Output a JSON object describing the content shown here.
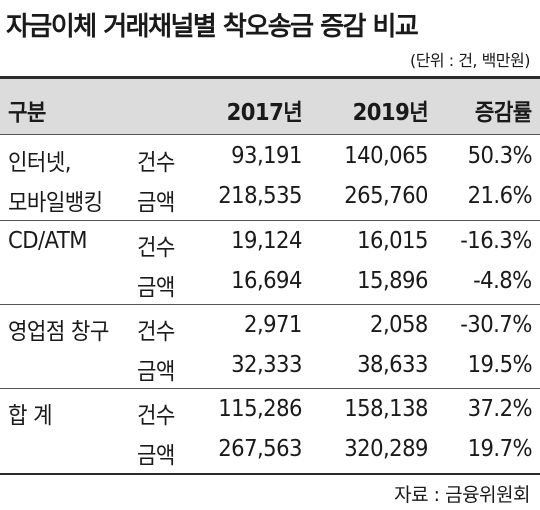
{
  "title": "자금이체 거래채널별 착오송금 증감 비교",
  "unit": "(단위 : 건, 백만원)",
  "headers": {
    "category": "구분",
    "y2017": "2017년",
    "y2019": "2019년",
    "change": "증감률"
  },
  "rows": [
    {
      "group_line1": "인터넷,",
      "group_line2": "모바일뱅킹",
      "count": {
        "label": "건수",
        "y2017": "93,191",
        "y2019": "140,065",
        "change": "50.3%"
      },
      "amount": {
        "label": "금액",
        "y2017": "218,535",
        "y2019": "265,760",
        "change": "21.6%"
      }
    },
    {
      "group_line1": "CD/ATM",
      "count": {
        "label": "건수",
        "y2017": "19,124",
        "y2019": "16,015",
        "change": "-16.3%"
      },
      "amount": {
        "label": "금액",
        "y2017": "16,694",
        "y2019": "15,896",
        "change": "-4.8%"
      }
    },
    {
      "group_line1": "영업점 창구",
      "count": {
        "label": "건수",
        "y2017": "2,971",
        "y2019": "2,058",
        "change": "-30.7%"
      },
      "amount": {
        "label": "금액",
        "y2017": "32,333",
        "y2019": "38,633",
        "change": "19.5%"
      }
    },
    {
      "group_line1": "합 계",
      "count": {
        "label": "건수",
        "y2017": "115,286",
        "y2019": "158,138",
        "change": "37.2%"
      },
      "amount": {
        "label": "금액",
        "y2017": "267,563",
        "y2019": "320,289",
        "change": "19.7%"
      }
    }
  ],
  "source": "자료 : 금융위원회"
}
